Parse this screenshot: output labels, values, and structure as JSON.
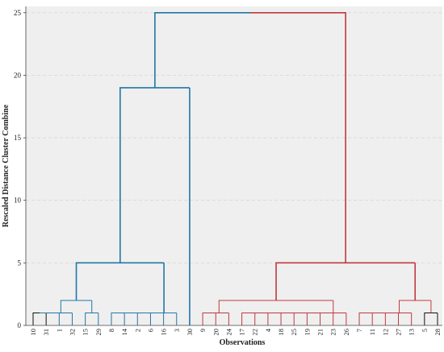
{
  "chart_data": {
    "type": "dendrogram",
    "title": "",
    "xlabel": "Observations",
    "ylabel": "Rescaled Distance Cluster Combine",
    "ylim": [
      0,
      25.5
    ],
    "yticks": [
      0,
      5,
      10,
      15,
      20,
      25
    ],
    "grid": true,
    "legend": "none",
    "leaf_order": [
      "10",
      "31",
      "1",
      "32",
      "15",
      "29",
      "8",
      "14",
      "2",
      "6",
      "16",
      "3",
      "30",
      "9",
      "20",
      "24",
      "17",
      "22",
      "4",
      "18",
      "25",
      "19",
      "21",
      "23",
      "26",
      "7",
      "11",
      "12",
      "27",
      "13",
      "5",
      "28"
    ],
    "colors": {
      "blue": "#1f77a8",
      "red": "#c0393f",
      "black": "#111111",
      "plot_bg": "#efefef",
      "grid": "#d6d6d6"
    },
    "merges": [
      {
        "a": "10",
        "b": "31",
        "h": 1,
        "color": "black"
      },
      {
        "a": "L:1",
        "b": "1",
        "h": 1,
        "color": "blue"
      },
      {
        "a": "L:2",
        "b": "32",
        "h": 1,
        "color": "blue"
      },
      {
        "a": "15",
        "b": "29",
        "h": 1,
        "color": "blue"
      },
      {
        "a": "L:3",
        "b": "L:4",
        "h": 2,
        "color": "blue"
      },
      {
        "a": "8",
        "b": "14",
        "h": 1,
        "color": "blue"
      },
      {
        "a": "L:6",
        "b": "2",
        "h": 1,
        "color": "blue"
      },
      {
        "a": "L:7",
        "b": "6",
        "h": 1,
        "color": "blue"
      },
      {
        "a": "L:8",
        "b": "16",
        "h": 1,
        "color": "blue"
      },
      {
        "a": "L:9",
        "b": "3",
        "h": 1,
        "color": "blue"
      },
      {
        "a": "L:5",
        "b": "L:10",
        "h": 5,
        "color": "blue"
      },
      {
        "a": "L:11",
        "b": "30",
        "h": 19,
        "color": "blue"
      },
      {
        "a": "9",
        "b": "20",
        "h": 1,
        "color": "red"
      },
      {
        "a": "L:13",
        "b": "24",
        "h": 1,
        "color": "red"
      },
      {
        "a": "17",
        "b": "22",
        "h": 1,
        "color": "red"
      },
      {
        "a": "L:15",
        "b": "4",
        "h": 1,
        "color": "red"
      },
      {
        "a": "L:16",
        "b": "18",
        "h": 1,
        "color": "red"
      },
      {
        "a": "L:17",
        "b": "25",
        "h": 1,
        "color": "red"
      },
      {
        "a": "L:18",
        "b": "19",
        "h": 1,
        "color": "red"
      },
      {
        "a": "L:19",
        "b": "21",
        "h": 1,
        "color": "red"
      },
      {
        "a": "L:20",
        "b": "23",
        "h": 1,
        "color": "red"
      },
      {
        "a": "L:21",
        "b": "26",
        "h": 1,
        "color": "red"
      },
      {
        "a": "L:14",
        "b": "L:22",
        "h": 2,
        "color": "red"
      },
      {
        "a": "7",
        "b": "11",
        "h": 1,
        "color": "red"
      },
      {
        "a": "L:24",
        "b": "12",
        "h": 1,
        "color": "red"
      },
      {
        "a": "L:25",
        "b": "27",
        "h": 1,
        "color": "red"
      },
      {
        "a": "L:26",
        "b": "13",
        "h": 1,
        "color": "red"
      },
      {
        "a": "5",
        "b": "28",
        "h": 1,
        "color": "black"
      },
      {
        "a": "L:27",
        "b": "L:28",
        "h": 2,
        "color": "red"
      },
      {
        "a": "L:23",
        "b": "L:29",
        "h": 5,
        "color": "red"
      },
      {
        "a": "L:12",
        "b": "L:30",
        "h": 25,
        "color": "mixed"
      }
    ]
  }
}
